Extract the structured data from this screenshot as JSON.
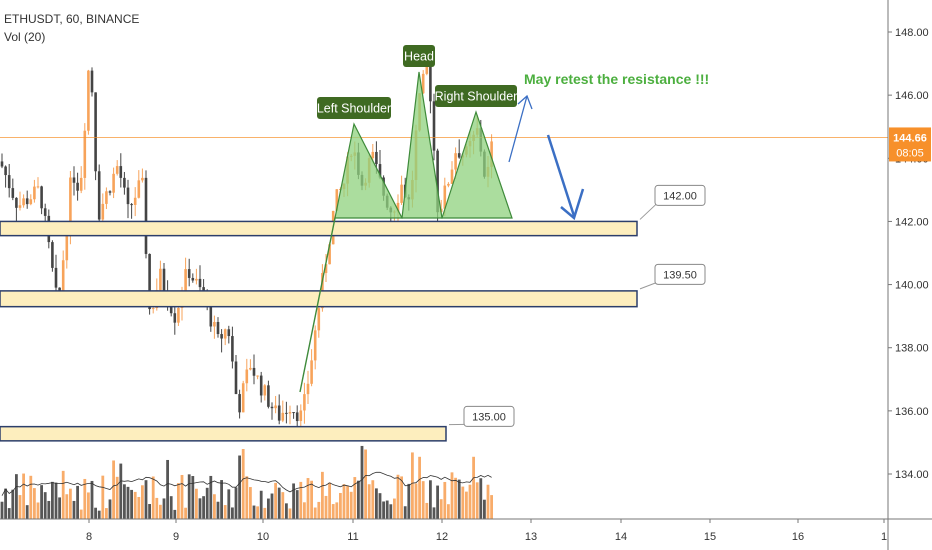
{
  "legend": {
    "symbol": "ETHUSDT, 60, BINANCE",
    "volume": "Vol (20)"
  },
  "chart_data": {
    "type": "candlestick",
    "y_ticks": [
      134.0,
      136.0,
      138.0,
      140.0,
      142.0,
      144.0,
      146.0,
      148.0
    ],
    "x_ticks": [
      "8",
      "9",
      "10",
      "11",
      "12",
      "13",
      "14",
      "15",
      "16",
      "1"
    ],
    "ylim": [
      132.5,
      148.8
    ],
    "current_price": {
      "value": 144.66,
      "label": "144.66",
      "countdown": "08:05"
    },
    "levels": [
      {
        "label": "142.00",
        "value": 142.0,
        "low": 141.55,
        "high": 142.0
      },
      {
        "label": "139.50",
        "value": 139.5,
        "low": 139.3,
        "high": 139.8
      },
      {
        "label": "135.00",
        "value": 135.0,
        "low": 135.05,
        "high": 135.5
      }
    ],
    "pattern_labels": {
      "left_shoulder": "Left Shoulder",
      "head": "Head",
      "right_shoulder": "Right Shoulder"
    },
    "annotation": "May retest the resistance !!!",
    "colors": {
      "up": "#f7a35a",
      "down": "#444444",
      "zone_fill": "#fdeebe",
      "zone_border": "#2c3e6b",
      "pattern_fill": "#8fd17e",
      "pattern_stroke": "#3e8a3a",
      "label_bg": "#3f6a22",
      "arrow": "#3b6fc4",
      "annotation": "#4caf3f",
      "price_tag": "#f7902a"
    }
  }
}
